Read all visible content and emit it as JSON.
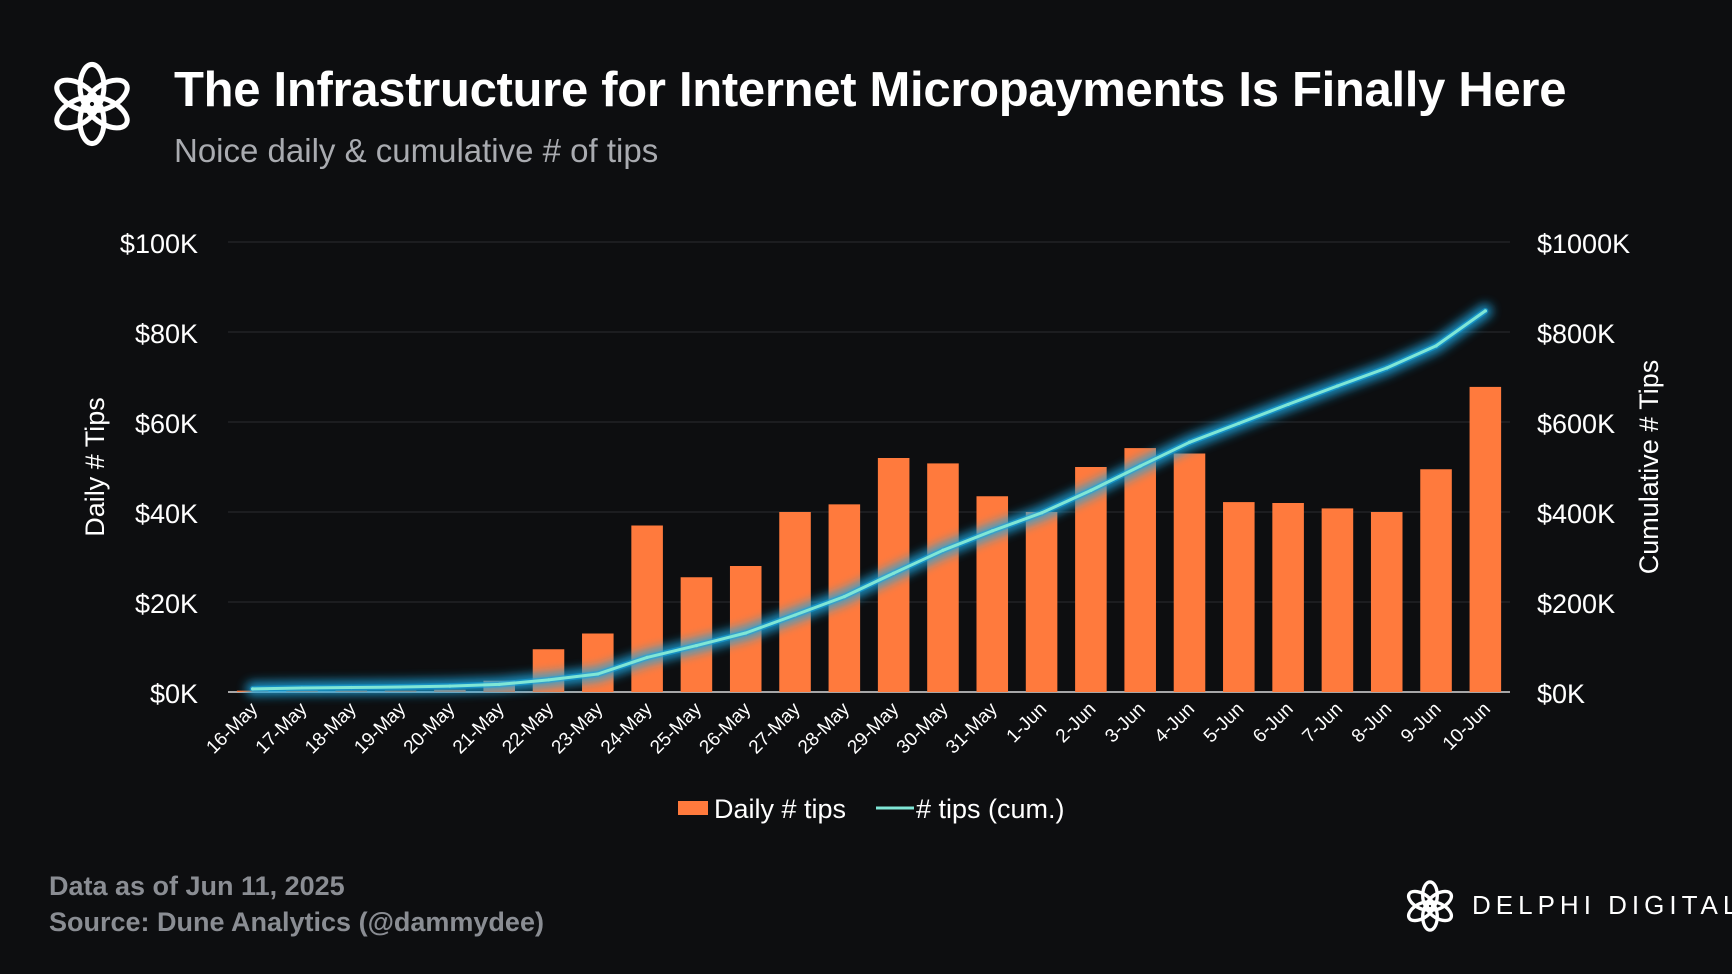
{
  "header": {
    "title": "The Infrastructure for Internet Micropayments Is Finally Here",
    "subtitle": "Noice daily & cumulative # of tips"
  },
  "footer": {
    "date_note": "Data as of Jun 11, 2025",
    "source": "Source: Dune Analytics (@dammydee)",
    "brand": "DELPHI DIGITAL"
  },
  "colors": {
    "background": "#0d0e10",
    "bar": "#ff7a3d",
    "line": "#7fe6d6",
    "line_glow": "#1aa6e0",
    "grid": "#2a2c30"
  },
  "chart_data": {
    "type": "bar",
    "title": "Noice daily & cumulative # of tips",
    "categories": [
      "16-May",
      "17-May",
      "18-May",
      "19-May",
      "20-May",
      "21-May",
      "22-May",
      "23-May",
      "24-May",
      "25-May",
      "26-May",
      "27-May",
      "28-May",
      "29-May",
      "30-May",
      "31-May",
      "1-Jun",
      "2-Jun",
      "3-Jun",
      "4-Jun",
      "5-Jun",
      "6-Jun",
      "7-Jun",
      "8-Jun",
      "9-Jun",
      "10-Jun"
    ],
    "series": [
      {
        "name": "Daily # tips",
        "type": "bar",
        "axis": "left",
        "values": [
          300,
          300,
          300,
          300,
          500,
          2500,
          9500,
          13000,
          37000,
          25500,
          28000,
          40000,
          41700,
          52000,
          50800,
          43500,
          40000,
          50000,
          54200,
          53000,
          42200,
          42000,
          40800,
          40000,
          49500,
          67800
        ]
      },
      {
        "name": "# tips (cum.)",
        "type": "line",
        "axis": "right",
        "values": [
          7000,
          9000,
          10000,
          11000,
          13000,
          17000,
          27000,
          40000,
          77000,
          103000,
          131000,
          171000,
          212000,
          264000,
          315000,
          358000,
          398000,
          448000,
          502000,
          555000,
          597000,
          639000,
          680000,
          720000,
          769000,
          847000
        ]
      }
    ],
    "left_axis": {
      "label": "Daily # Tips",
      "range": [
        0,
        100000
      ],
      "ticks": [
        "$0K",
        "$20K",
        "$40K",
        "$60K",
        "$80K",
        "$100K"
      ]
    },
    "right_axis": {
      "label": "Cumulative # Tips",
      "range": [
        0,
        1000000
      ],
      "ticks": [
        "$0K",
        "$200K",
        "$400K",
        "$600K",
        "$800K",
        "$1000K"
      ]
    },
    "legend": [
      "Daily # tips",
      "# tips (cum.)"
    ],
    "legend_position": "bottom-center",
    "grid": true
  }
}
